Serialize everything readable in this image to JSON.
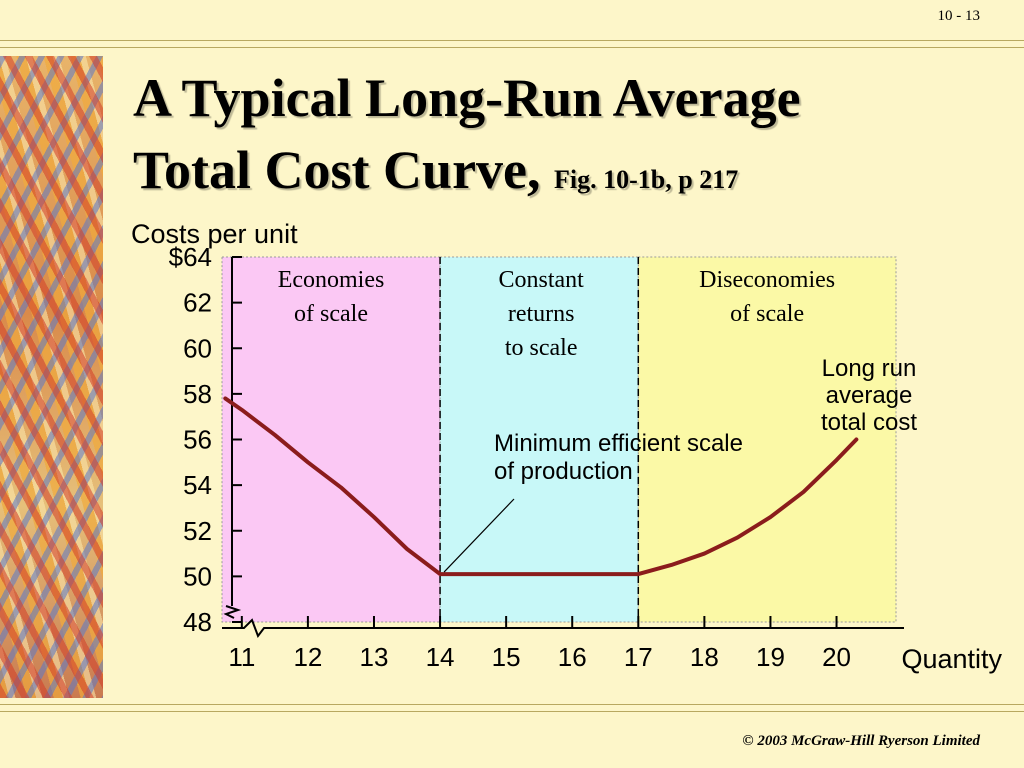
{
  "slide": {
    "number": "10 - 13",
    "title_line1": "A Typical Long-Run Average",
    "title_line2": "Total Cost Curve,",
    "title_fig": "Fig. 10-1b, p 217",
    "footer": "© 2003 McGraw-Hill Ryerson Limited"
  },
  "colors": {
    "background": "#fdf6c9",
    "economies": "#fbc8f4",
    "constant": "#c8f8f8",
    "diseconomies": "#fbf9a6",
    "curve": "#8b1c1c"
  },
  "chart_data": {
    "type": "line",
    "ylabel": "Costs per unit",
    "xlabel": "Quantity",
    "ylim": [
      48,
      64
    ],
    "xlim": [
      10.7,
      20.9
    ],
    "yticks": [
      {
        "v": 64,
        "label": "$64"
      },
      {
        "v": 62,
        "label": "62"
      },
      {
        "v": 60,
        "label": "60"
      },
      {
        "v": 58,
        "label": "58"
      },
      {
        "v": 56,
        "label": "56"
      },
      {
        "v": 54,
        "label": "54"
      },
      {
        "v": 52,
        "label": "52"
      },
      {
        "v": 50,
        "label": "50"
      },
      {
        "v": 48,
        "label": "48"
      }
    ],
    "xticks": [
      {
        "v": 11,
        "label": "11"
      },
      {
        "v": 12,
        "label": "12"
      },
      {
        "v": 13,
        "label": "13"
      },
      {
        "v": 14,
        "label": "14"
      },
      {
        "v": 15,
        "label": "15"
      },
      {
        "v": 16,
        "label": "16"
      },
      {
        "v": 17,
        "label": "17"
      },
      {
        "v": 18,
        "label": "18"
      },
      {
        "v": 19,
        "label": "19"
      },
      {
        "v": 20,
        "label": "20"
      }
    ],
    "regions": [
      {
        "id": "economies",
        "x0": 10.7,
        "x1": 14,
        "lines": [
          "Economies",
          "of scale"
        ]
      },
      {
        "id": "constant",
        "x0": 14,
        "x1": 17,
        "lines": [
          "Constant",
          "returns",
          "to scale"
        ]
      },
      {
        "id": "diseconomies",
        "x0": 17,
        "x1": 20.9,
        "lines": [
          "Diseconomies",
          "of scale"
        ]
      }
    ],
    "boundaries": [
      14,
      17
    ],
    "series": [
      {
        "name": "Long run average total cost",
        "x": [
          10.75,
          11.0,
          11.5,
          12.0,
          12.5,
          13.0,
          13.5,
          14.0,
          15.0,
          16.0,
          17.0,
          17.5,
          18.0,
          18.5,
          19.0,
          19.5,
          20.0,
          20.3
        ],
        "y": [
          57.8,
          57.3,
          56.2,
          55.0,
          53.9,
          52.6,
          51.2,
          50.1,
          50.1,
          50.1,
          50.1,
          50.5,
          51.0,
          51.7,
          52.6,
          53.7,
          55.1,
          56.0
        ]
      }
    ],
    "annotations": {
      "curve_label": [
        "Long run",
        "average",
        "total cost"
      ],
      "mes_label": [
        "Minimum efficient scale",
        "of production"
      ]
    },
    "grid": false
  }
}
